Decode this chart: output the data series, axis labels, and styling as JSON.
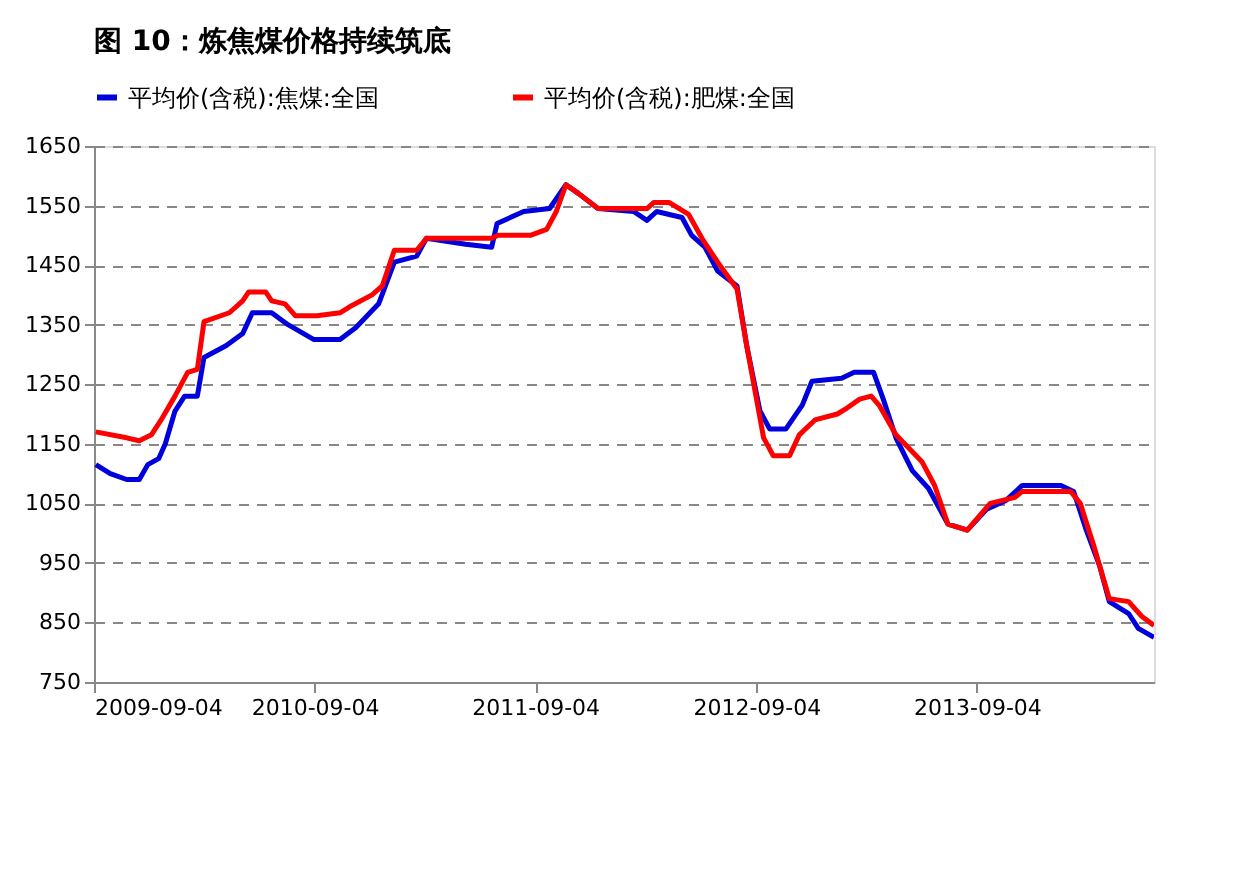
{
  "chart_data": {
    "type": "line",
    "title": "图 10：炼焦煤价格持续筑底",
    "series": [
      {
        "name": "平均价(含税):焦煤:全国",
        "color": "#0000dd",
        "x": [
          "2009-09-07",
          "2009-10-01",
          "2009-10-28",
          "2009-11-18",
          "2009-12-02",
          "2009-12-20",
          "2009-12-31",
          "2010-01-16",
          "2010-02-01",
          "2010-02-22",
          "2010-03-05",
          "2010-04-11",
          "2010-05-08",
          "2010-05-24",
          "2010-06-25",
          "2010-07-22",
          "2010-09-03",
          "2010-10-16",
          "2010-11-11",
          "2010-12-19",
          "2011-01-14",
          "2011-02-20",
          "2011-03-08",
          "2011-05-12",
          "2011-06-24",
          "2011-07-03",
          "2011-08-16",
          "2011-09-28",
          "2011-10-25",
          "2011-11-15",
          "2011-12-17",
          "2012-02-14",
          "2012-03-07",
          "2012-03-23",
          "2012-05-04",
          "2012-05-20",
          "2012-06-11",
          "2012-07-02",
          "2012-08-03",
          "2012-08-19",
          "2012-09-10",
          "2012-09-26",
          "2012-10-23",
          "2012-11-19",
          "2012-12-05",
          "2013-01-23",
          "2013-02-13",
          "2013-03-17",
          "2013-04-02",
          "2013-04-23",
          "2013-05-20",
          "2013-06-16",
          "2013-07-18",
          "2013-08-19",
          "2013-09-20",
          "2013-10-22",
          "2013-11-18",
          "2014-01-21",
          "2014-02-11",
          "2014-03-04",
          "2014-03-26",
          "2014-04-11",
          "2014-05-13",
          "2014-05-29",
          "2014-06-24"
        ],
        "values": [
          1115,
          1100,
          1090,
          1090,
          1115,
          1125,
          1150,
          1205,
          1230,
          1230,
          1295,
          1315,
          1335,
          1370,
          1370,
          1350,
          1325,
          1325,
          1345,
          1385,
          1455,
          1465,
          1495,
          1485,
          1480,
          1520,
          1540,
          1545,
          1585,
          1570,
          1545,
          1540,
          1525,
          1540,
          1530,
          1500,
          1480,
          1440,
          1415,
          1315,
          1205,
          1175,
          1175,
          1215,
          1255,
          1260,
          1270,
          1270,
          1225,
          1160,
          1105,
          1075,
          1015,
          1005,
          1040,
          1055,
          1080,
          1080,
          1070,
          1005,
          945,
          885,
          865,
          840,
          825
        ]
      },
      {
        "name": "平均价(含税):肥煤:全国",
        "color": "#ff0000",
        "x": [
          "2009-09-07",
          "2009-10-28",
          "2009-11-18",
          "2009-12-08",
          "2009-12-24",
          "2010-01-16",
          "2010-02-06",
          "2010-02-22",
          "2010-03-05",
          "2010-04-16",
          "2010-05-08",
          "2010-05-18",
          "2010-06-15",
          "2010-06-25",
          "2010-07-17",
          "2010-08-03",
          "2010-09-08",
          "2010-10-16",
          "2010-11-01",
          "2010-12-08",
          "2010-12-25",
          "2011-01-14",
          "2011-02-20",
          "2011-03-08",
          "2011-05-12",
          "2011-06-24",
          "2011-07-05",
          "2011-08-27",
          "2011-09-23",
          "2011-10-09",
          "2011-10-25",
          "2011-11-15",
          "2011-12-17",
          "2012-03-07",
          "2012-03-18",
          "2012-04-13",
          "2012-05-15",
          "2012-06-06",
          "2012-07-02",
          "2012-08-03",
          "2012-08-19",
          "2012-09-16",
          "2012-10-02",
          "2012-10-29",
          "2012-11-14",
          "2012-12-10",
          "2013-01-16",
          "2013-02-01",
          "2013-02-22",
          "2013-03-13",
          "2013-03-26",
          "2013-04-23",
          "2013-06-05",
          "2013-06-26",
          "2013-07-18",
          "2013-08-19",
          "2013-09-26",
          "2013-11-06",
          "2013-11-18",
          "2014-02-06",
          "2014-02-22",
          "2014-03-16",
          "2014-04-11",
          "2014-05-13",
          "2014-06-04",
          "2014-06-24"
        ],
        "values": [
          1170,
          1160,
          1155,
          1165,
          1190,
          1230,
          1270,
          1275,
          1355,
          1370,
          1390,
          1405,
          1405,
          1390,
          1385,
          1365,
          1365,
          1370,
          1380,
          1400,
          1415,
          1475,
          1475,
          1495,
          1495,
          1495,
          1500,
          1500,
          1510,
          1540,
          1585,
          1570,
          1545,
          1545,
          1555,
          1555,
          1535,
          1495,
          1455,
          1410,
          1315,
          1160,
          1130,
          1130,
          1165,
          1190,
          1200,
          1210,
          1225,
          1230,
          1215,
          1165,
          1120,
          1080,
          1015,
          1005,
          1050,
          1060,
          1070,
          1070,
          1050,
          980,
          890,
          885,
          860,
          845
        ]
      }
    ],
    "xlim": [
      "2009-09-04",
      "2014-06-24"
    ],
    "xticks": [
      "2009-09-04",
      "2010-09-04",
      "2011-09-04",
      "2012-09-04",
      "2013-09-04"
    ],
    "ylim": [
      750,
      1650
    ],
    "yticks": [
      750,
      850,
      950,
      1050,
      1150,
      1250,
      1350,
      1450,
      1550,
      1650
    ],
    "grid": "y",
    "legend": "top",
    "line_style": "solid",
    "marker": "none"
  }
}
